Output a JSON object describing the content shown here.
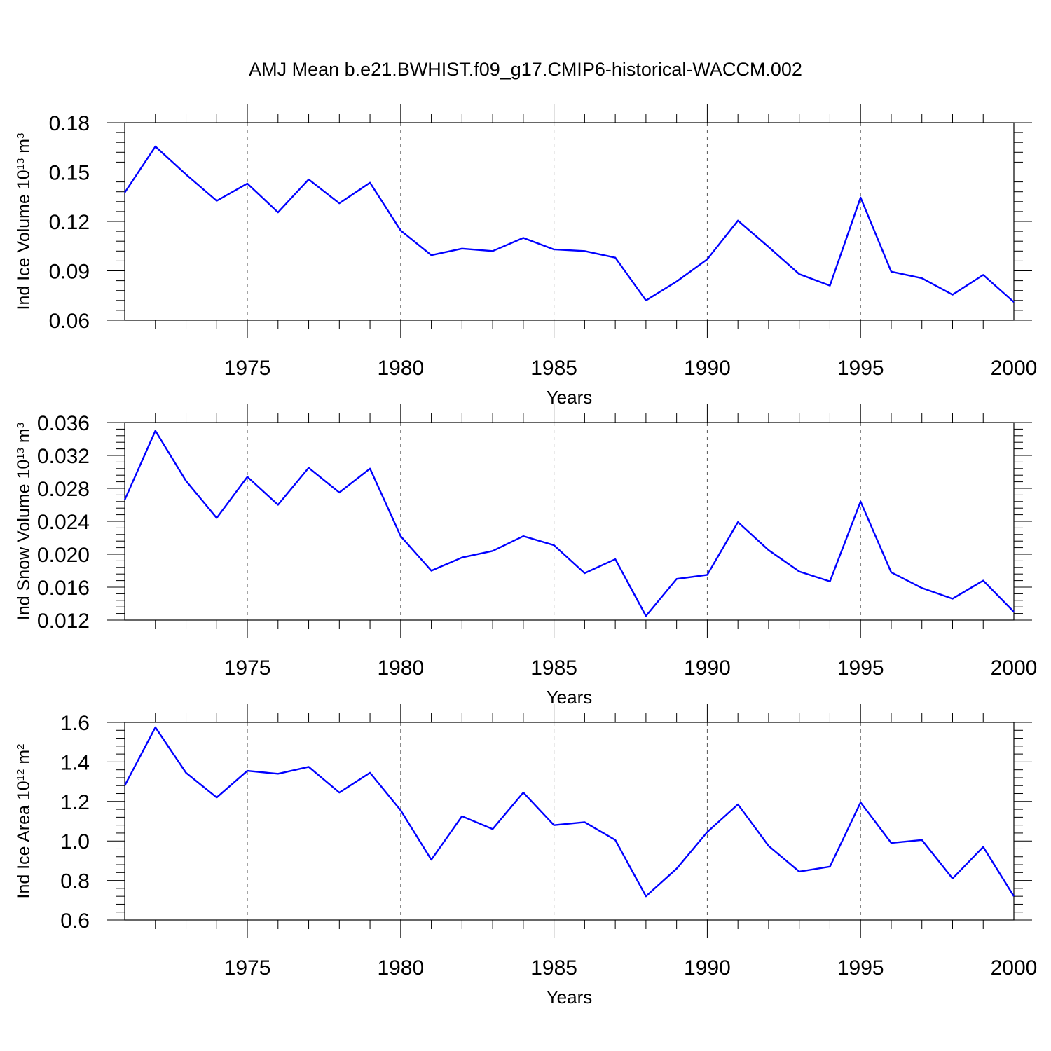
{
  "title": "AMJ Mean b.e21.BWHIST.f09_g17.CMIP6-historical-WACCM.002",
  "line_color": "#0000ff",
  "chart_data": [
    {
      "type": "line",
      "xlabel": "Years",
      "ylabel": {
        "text": "Ind Ice Volume 10",
        "sup1": "13",
        "unit": " m",
        "sup2": "3"
      },
      "xlim": [
        1971,
        2000
      ],
      "ylim": [
        0.06,
        0.18
      ],
      "xticks": [
        1975,
        1980,
        1985,
        1990,
        1995,
        2000
      ],
      "yticks": [
        0.06,
        0.09,
        0.12,
        0.15,
        0.18
      ],
      "ytick_labels": [
        "0.06",
        "0.09",
        "0.12",
        "0.15",
        "0.18"
      ],
      "grid": "vertical dashed at major x ticks",
      "series": [
        {
          "x": [
            1971,
            1972,
            1973,
            1974,
            1975,
            1976,
            1977,
            1978,
            1979,
            1980,
            1981,
            1982,
            1983,
            1984,
            1985,
            1986,
            1987,
            1988,
            1989,
            1990,
            1991,
            1992,
            1993,
            1994,
            1995,
            1996,
            1997,
            1998,
            1999,
            2000
          ],
          "values": [
            0.1375,
            0.1655,
            0.1485,
            0.1325,
            0.143,
            0.1255,
            0.1455,
            0.131,
            0.1435,
            0.1145,
            0.0995,
            0.1035,
            0.102,
            0.11,
            0.103,
            0.102,
            0.098,
            0.072,
            0.0835,
            0.097,
            0.1205,
            0.1045,
            0.088,
            0.081,
            0.1345,
            0.0895,
            0.0855,
            0.0755,
            0.0875,
            0.071
          ]
        }
      ]
    },
    {
      "type": "line",
      "xlabel": "Years",
      "ylabel": {
        "text": "Ind Snow Volume 10",
        "sup1": "13",
        "unit": " m",
        "sup2": "3"
      },
      "xlim": [
        1971,
        2000
      ],
      "ylim": [
        0.012,
        0.036
      ],
      "xticks": [
        1975,
        1980,
        1985,
        1990,
        1995,
        2000
      ],
      "yticks": [
        0.012,
        0.016,
        0.02,
        0.024,
        0.028,
        0.032,
        0.036
      ],
      "ytick_labels": [
        "0.012",
        "0.016",
        "0.020",
        "0.024",
        "0.028",
        "0.032",
        "0.036"
      ],
      "grid": "vertical dashed at major x ticks",
      "series": [
        {
          "x": [
            1971,
            1972,
            1973,
            1974,
            1975,
            1976,
            1977,
            1978,
            1979,
            1980,
            1981,
            1982,
            1983,
            1984,
            1985,
            1986,
            1987,
            1988,
            1989,
            1990,
            1991,
            1992,
            1993,
            1994,
            1995,
            1996,
            1997,
            1998,
            1999,
            2000
          ],
          "values": [
            0.0266,
            0.035,
            0.0289,
            0.0244,
            0.0294,
            0.026,
            0.0305,
            0.0275,
            0.0304,
            0.0222,
            0.018,
            0.0196,
            0.0204,
            0.0222,
            0.0211,
            0.0177,
            0.0194,
            0.0125,
            0.017,
            0.0175,
            0.0239,
            0.0205,
            0.0179,
            0.0167,
            0.0264,
            0.0178,
            0.0159,
            0.0146,
            0.0168,
            0.013
          ]
        }
      ]
    },
    {
      "type": "line",
      "xlabel": "Years",
      "ylabel": {
        "text": "Ind Ice Area 10",
        "sup1": "12",
        "unit": " m",
        "sup2": "2"
      },
      "xlim": [
        1971,
        2000
      ],
      "ylim": [
        0.6,
        1.6
      ],
      "xticks": [
        1975,
        1980,
        1985,
        1990,
        1995,
        2000
      ],
      "yticks": [
        0.6,
        0.8,
        1.0,
        1.2,
        1.4,
        1.6
      ],
      "ytick_labels": [
        "0.6",
        "0.8",
        "1.0",
        "1.2",
        "1.4",
        "1.6"
      ],
      "grid": "vertical dashed at major x ticks",
      "series": [
        {
          "x": [
            1971,
            1972,
            1973,
            1974,
            1975,
            1976,
            1977,
            1978,
            1979,
            1980,
            1981,
            1982,
            1983,
            1984,
            1985,
            1986,
            1987,
            1988,
            1989,
            1990,
            1991,
            1992,
            1993,
            1994,
            1995,
            1996,
            1997,
            1998,
            1999,
            2000
          ],
          "values": [
            1.28,
            1.575,
            1.345,
            1.22,
            1.355,
            1.34,
            1.375,
            1.245,
            1.345,
            1.155,
            0.905,
            1.125,
            1.06,
            1.245,
            1.08,
            1.095,
            1.005,
            0.72,
            0.86,
            1.045,
            1.185,
            0.975,
            0.845,
            0.87,
            1.195,
            0.99,
            1.005,
            0.81,
            0.97,
            0.72
          ]
        }
      ]
    }
  ]
}
